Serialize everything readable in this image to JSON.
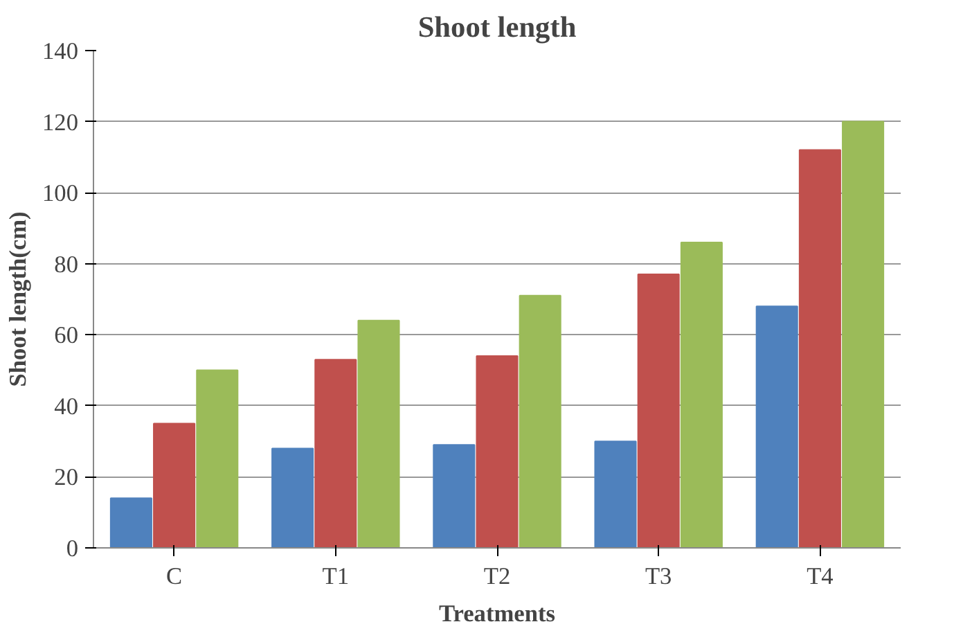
{
  "chart_data": {
    "type": "bar",
    "title": "Shoot length",
    "xlabel": "Treatments",
    "ylabel": "Shoot length(cm)",
    "categories": [
      "C",
      "T1",
      "T2",
      "T3",
      "T4"
    ],
    "series": [
      {
        "color": "#4f81bd",
        "values": [
          14,
          28,
          29,
          30,
          68
        ]
      },
      {
        "color": "#c0504d",
        "values": [
          35,
          53,
          54,
          77,
          112
        ]
      },
      {
        "color": "#9bbb59",
        "values": [
          50,
          64,
          71,
          86,
          120
        ]
      }
    ],
    "ylim": [
      0,
      140
    ],
    "yticks": [
      0,
      20,
      40,
      60,
      80,
      100,
      120,
      140
    ],
    "grid": "y"
  }
}
